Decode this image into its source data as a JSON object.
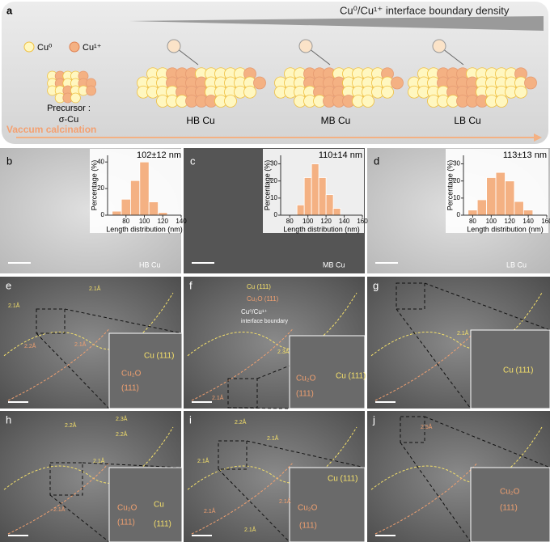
{
  "panel_a": {
    "label": "a",
    "title": "Cu⁰/Cu¹⁺ interface boundary density",
    "legend": [
      "Cu⁰",
      "Cu¹⁺"
    ],
    "precursor": "Precursor :",
    "precursor_phase": "σ-Cu",
    "process": "Vaccum calcination",
    "samples": [
      "HB Cu",
      "MB Cu",
      "LB Cu"
    ]
  },
  "panels_bcd": [
    {
      "label": "b",
      "sample": "HB Cu"
    },
    {
      "label": "c",
      "sample": "MB Cu"
    },
    {
      "label": "d",
      "sample": "LB Cu"
    }
  ],
  "chart_data": [
    {
      "type": "histogram",
      "title": "102±12 nm",
      "xlabel": "Length distribution (nm)",
      "ylabel": "Percentage (%)",
      "bins": [
        65,
        75,
        85,
        95,
        105,
        115,
        125
      ],
      "values": [
        3,
        12,
        26,
        40,
        10,
        2
      ],
      "color": "#f4b183",
      "xlim": [
        60,
        140
      ],
      "ylim": [
        0,
        45
      ],
      "xticks": [
        80,
        100,
        120,
        140
      ],
      "yticks": [
        0,
        20,
        40
      ]
    },
    {
      "type": "histogram",
      "title": "110±14 nm",
      "xlabel": "Length distribution (nm)",
      "ylabel": "Percentage (%)",
      "bins": [
        88,
        96,
        104,
        112,
        120,
        128,
        136
      ],
      "values": [
        6,
        22,
        30,
        22,
        12,
        4
      ],
      "color": "#f4b183",
      "xlim": [
        70,
        160
      ],
      "ylim": [
        0,
        35
      ],
      "xticks": [
        80,
        100,
        120,
        140,
        160
      ],
      "yticks": [
        0,
        10,
        20,
        30
      ]
    },
    {
      "type": "histogram",
      "title": "113±13 nm",
      "xlabel": "Length distribution (nm)",
      "ylabel": "Percentage (%)",
      "bins": [
        75,
        85,
        95,
        105,
        115,
        125,
        135,
        145
      ],
      "values": [
        3,
        9,
        22,
        25,
        20,
        8,
        3
      ],
      "color": "#f4b183",
      "xlim": [
        70,
        160
      ],
      "ylim": [
        0,
        35
      ],
      "xticks": [
        80,
        100,
        120,
        140,
        160
      ],
      "yticks": [
        0,
        10,
        20,
        30
      ]
    }
  ],
  "tem_panels": [
    {
      "label": "e",
      "annotations": [
        "2.1Å",
        "2.1Å",
        "2.2Å",
        "2.1Å",
        "Cu (111)",
        "Cu₂O",
        "(111)"
      ]
    },
    {
      "label": "f",
      "annotations": [
        "Cu (111)",
        "Cu₂O (111)",
        "Cu⁰/Cu¹⁺",
        "interface boundary",
        "2.3Å",
        "2.1Å",
        "Cu₂O",
        "(111)",
        "Cu (111)"
      ]
    },
    {
      "label": "g",
      "annotations": [
        "2.1Å",
        "Cu (111)"
      ]
    },
    {
      "label": "h",
      "annotations": [
        "2.3Å",
        "2.2Å",
        "2.2Å",
        "2.1Å",
        "2.1Å",
        "Cu₂O",
        "(111)",
        "Cu",
        "(111)"
      ]
    },
    {
      "label": "i",
      "annotations": [
        "2.2Å",
        "2.1Å",
        "2.1Å",
        "2.1Å",
        "2.1Å",
        "2.1Å",
        "Cu (111)",
        "Cu₂O",
        "(111)"
      ]
    },
    {
      "label": "j",
      "annotations": [
        "2.5Å",
        "Cu₂O",
        "(111)"
      ]
    }
  ]
}
